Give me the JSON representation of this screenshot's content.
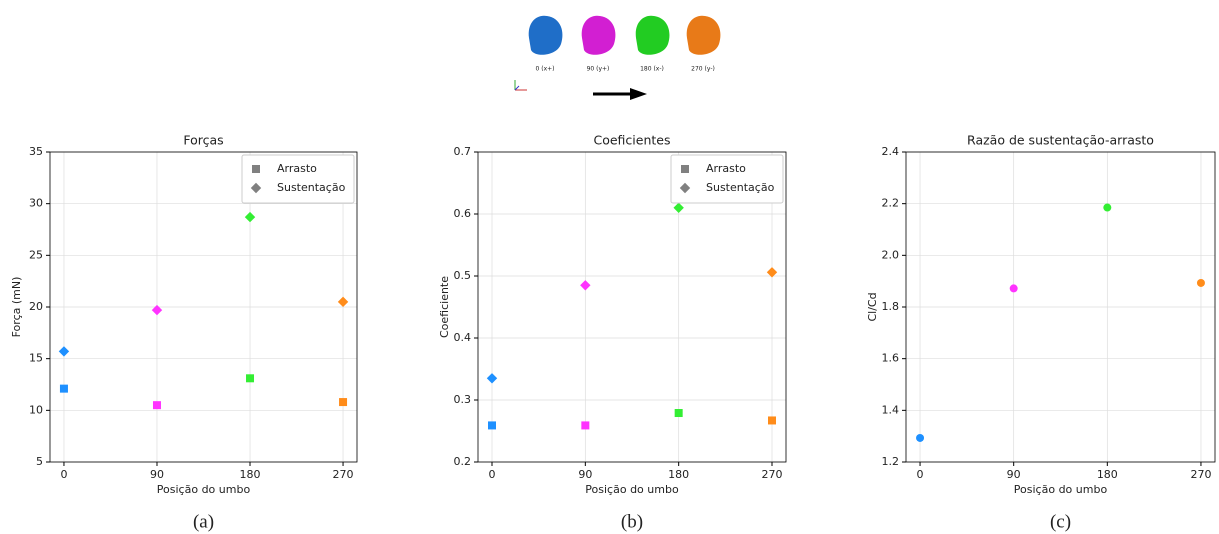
{
  "header": {
    "views": [
      {
        "label": "0 (x+)",
        "color": "#1f6ec8"
      },
      {
        "label": "90 (y+)",
        "color": "#d21fd2"
      },
      {
        "label": "180 (x-)",
        "color": "#22cc22"
      },
      {
        "label": "270 (y-)",
        "color": "#e87a18"
      }
    ]
  },
  "chart_data": [
    {
      "type": "scatter",
      "title": "Forças",
      "x_label": "Posição do umbo",
      "y_label": "Força (mN)",
      "caption": "(a)",
      "x": [
        0,
        90,
        180,
        270
      ],
      "point_colors": [
        "#1e90ff",
        "#ff33ff",
        "#33ee33",
        "#ff8c1a"
      ],
      "series": [
        {
          "name": "Arrasto",
          "marker": "square",
          "color": "#808080",
          "values": [
            12.1,
            10.5,
            13.1,
            10.8
          ]
        },
        {
          "name": "Sustentação",
          "marker": "diamond",
          "color": "#808080",
          "values": [
            15.7,
            19.7,
            28.7,
            20.5
          ]
        }
      ],
      "xlim": [
        -13.5,
        283.5
      ],
      "xticks": [
        0,
        90,
        180,
        270
      ],
      "ylim": [
        5,
        35
      ],
      "yticks": [
        5,
        10,
        15,
        20,
        25,
        30,
        35
      ],
      "grid": true,
      "legend": "upper right"
    },
    {
      "type": "scatter",
      "title": "Coeficientes",
      "x_label": "Posição do umbo",
      "y_label": "Coeficiente",
      "caption": "(b)",
      "x": [
        0,
        90,
        180,
        270
      ],
      "point_colors": [
        "#1e90ff",
        "#ff33ff",
        "#33ee33",
        "#ff8c1a"
      ],
      "series": [
        {
          "name": "Arrasto",
          "marker": "square",
          "color": "#808080",
          "values": [
            0.259,
            0.259,
            0.279,
            0.267
          ]
        },
        {
          "name": "Sustentação",
          "marker": "diamond",
          "color": "#808080",
          "values": [
            0.335,
            0.485,
            0.61,
            0.506
          ]
        }
      ],
      "xlim": [
        -13.5,
        283.5
      ],
      "xticks": [
        0,
        90,
        180,
        270
      ],
      "ylim": [
        0.2,
        0.7
      ],
      "yticks": [
        0.2,
        0.3,
        0.4,
        0.5,
        0.6,
        0.7
      ],
      "grid": true,
      "legend": "upper right"
    },
    {
      "type": "scatter",
      "title": "Razão de sustentação-arrasto",
      "x_label": "Posição do umbo",
      "y_label": "Cl/Cd",
      "caption": "(c)",
      "x": [
        0,
        90,
        180,
        270
      ],
      "point_colors": [
        "#1e90ff",
        "#ff33ff",
        "#33ee33",
        "#ff8c1a"
      ],
      "series": [
        {
          "marker": "circle",
          "values": [
            1.293,
            1.872,
            2.185,
            1.893
          ]
        }
      ],
      "xlim": [
        -13.5,
        283.5
      ],
      "xticks": [
        0,
        90,
        180,
        270
      ],
      "ylim": [
        1.2,
        2.4
      ],
      "yticks": [
        1.2,
        1.4,
        1.6,
        1.8,
        {
          "value": 2,
          "label": "2.0"
        },
        2.2,
        2.4
      ],
      "grid": true
    }
  ]
}
